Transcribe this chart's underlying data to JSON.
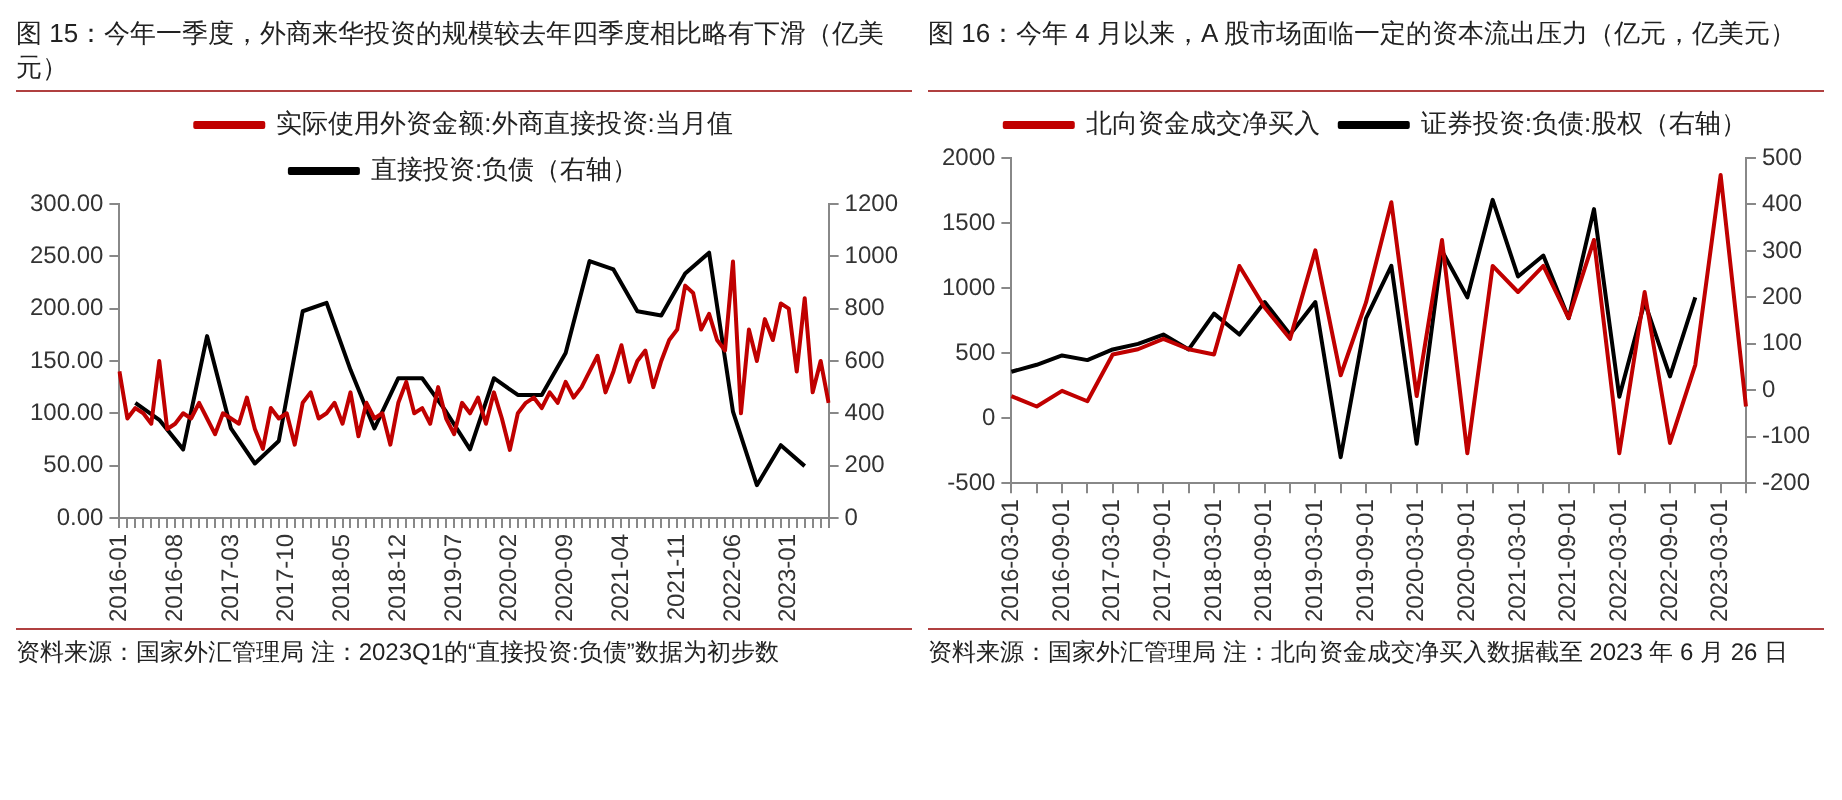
{
  "chart_data": [
    {
      "type": "line",
      "title": "图 15：今年一季度，外商来华投资的规模较去年四季度相比略有下滑（亿美元）",
      "categories": [
        "2016-01",
        null,
        null,
        null,
        null,
        null,
        null,
        "2016-08",
        null,
        null,
        null,
        null,
        null,
        null,
        "2017-03",
        null,
        null,
        null,
        null,
        null,
        null,
        "2017-10",
        null,
        null,
        null,
        null,
        null,
        null,
        "2018-05",
        null,
        null,
        null,
        null,
        null,
        null,
        "2018-12",
        null,
        null,
        null,
        null,
        null,
        null,
        "2019-07",
        null,
        null,
        null,
        null,
        null,
        null,
        "2020-02",
        null,
        null,
        null,
        null,
        null,
        null,
        "2020-09",
        null,
        null,
        null,
        null,
        null,
        null,
        "2021-04",
        null,
        null,
        null,
        null,
        null,
        null,
        "2021-11",
        null,
        null,
        null,
        null,
        null,
        null,
        "2022-06",
        null,
        null,
        null,
        null,
        null,
        null,
        "2023-01",
        null,
        null,
        null,
        null,
        null
      ],
      "series": [
        {
          "name": "实际使用外资金额:外商直接投资:当月值",
          "color": "#c00000",
          "values": [
            140,
            95,
            105,
            100,
            90,
            150,
            85,
            90,
            100,
            95,
            110,
            95,
            80,
            100,
            95,
            90,
            115,
            85,
            66,
            105,
            95,
            100,
            70,
            110,
            120,
            95,
            100,
            110,
            90,
            120,
            78,
            110,
            95,
            100,
            70,
            110,
            130,
            100,
            105,
            90,
            125,
            95,
            80,
            110,
            100,
            115,
            90,
            120,
            95,
            65,
            100,
            110,
            115,
            105,
            120,
            110,
            130,
            115,
            125,
            140,
            155,
            120,
            140,
            165,
            130,
            150,
            160,
            125,
            150,
            170,
            180,
            222,
            215,
            180,
            195,
            170,
            160,
            245,
            100,
            180,
            150,
            190,
            170,
            205,
            200,
            140,
            210,
            120,
            150,
            110
          ]
        },
        {
          "name": "直接投资:负债（右轴）",
          "color": "#000000",
          "axis": "y2",
          "values": [
            null,
            null,
            440,
            null,
            null,
            375,
            null,
            null,
            262,
            null,
            null,
            695,
            null,
            null,
            342,
            null,
            null,
            208,
            null,
            null,
            294,
            null,
            null,
            790,
            null,
            null,
            822,
            null,
            null,
            566,
            null,
            null,
            342,
            null,
            null,
            534,
            null,
            null,
            534,
            null,
            null,
            406,
            null,
            null,
            262,
            null,
            null,
            534,
            null,
            null,
            470,
            null,
            null,
            470,
            null,
            null,
            630,
            null,
            null,
            982,
            null,
            null,
            950,
            null,
            null,
            790,
            null,
            null,
            774,
            null,
            null,
            934,
            null,
            null,
            1014,
            null,
            null,
            406,
            null,
            null,
            125,
            null,
            null,
            278,
            null,
            null,
            198,
            null,
            null,
            null
          ]
        }
      ],
      "ylim": [
        0,
        300
      ],
      "yticks": [
        {
          "value": 0,
          "label": "0.00"
        },
        {
          "value": 50,
          "label": "50.00"
        },
        {
          "value": 100,
          "label": "100.00"
        },
        {
          "value": 150,
          "label": "150.00"
        },
        {
          "value": 200,
          "label": "200.00"
        },
        {
          "value": 250,
          "label": "250.00"
        },
        {
          "value": 300,
          "label": "300.00"
        }
      ],
      "y2lim": [
        0,
        1200
      ],
      "y2ticks": [
        0,
        200,
        400,
        600,
        800,
        1000,
        1200
      ],
      "grid": false,
      "legend": "top",
      "marker": "none",
      "line_style": "solid",
      "annotations": [
        "资料来源：国家外汇管理局 注：2023Q1的“直接投资:负债”数据为初步数"
      ]
    },
    {
      "type": "line",
      "title": "图 16：今年 4 月以来，A 股市场面临一定的资本流出压力（亿元，亿美元）",
      "categories": [
        "2016-03-01",
        null,
        "2016-09-01",
        null,
        "2017-03-01",
        null,
        "2017-09-01",
        null,
        "2018-03-01",
        null,
        "2018-09-01",
        null,
        "2019-03-01",
        null,
        "2019-09-01",
        null,
        "2020-03-01",
        null,
        "2020-09-01",
        null,
        "2021-03-01",
        null,
        "2021-09-01",
        null,
        "2022-03-01",
        null,
        "2022-09-01",
        null,
        "2023-03-01",
        null
      ],
      "series": [
        {
          "name": "北向资金成交净买入",
          "color": "#c00000",
          "values": [
            170,
            90,
            210,
            130,
            490,
            530,
            610,
            530,
            490,
            1170,
            850,
            610,
            1290,
            330,
            890,
            1660,
            170,
            1370,
            -270,
            1170,
            970,
            1170,
            770,
            1370,
            -270,
            970,
            -190,
            410,
            1870,
            90
          ]
        },
        {
          "name": "证券投资:负债:股权（右轴）",
          "color": "#000000",
          "axis": "y2",
          "values": [
            40,
            55,
            75,
            65,
            88,
            100,
            120,
            88,
            165,
            120,
            190,
            120,
            190,
            -144,
            155,
            268,
            -115,
            300,
            200,
            410,
            245,
            290,
            155,
            390,
            -14,
            190,
            30,
            200,
            null,
            null
          ]
        }
      ],
      "ylim": [
        -500,
        2000
      ],
      "yticks": [
        -500,
        0,
        500,
        1000,
        1500,
        2000
      ],
      "y2lim": [
        -200,
        500
      ],
      "y2ticks": [
        -200,
        -100,
        0,
        100,
        200,
        300,
        400,
        500
      ],
      "grid": false,
      "legend": "top",
      "marker": "none",
      "line_style": "solid",
      "annotations": [
        "资料来源：国家外汇管理局 注：北向资金成交净买入数据截至 2023 年 6 月 26 日"
      ]
    }
  ]
}
